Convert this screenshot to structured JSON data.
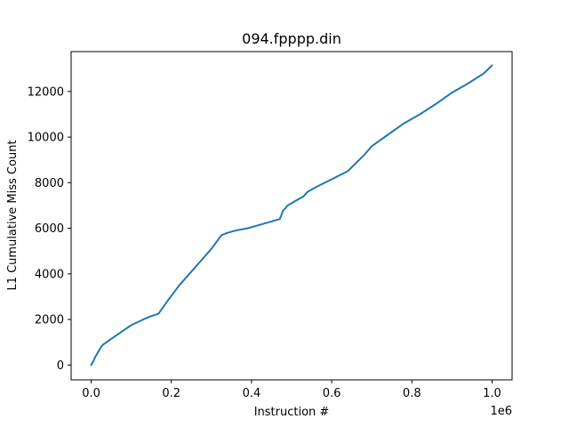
{
  "chart_data": {
    "type": "line",
    "title": "094.fpppp.din",
    "xlabel": "Instruction #",
    "ylabel": "L1 Cumulative Miss Count",
    "x_offset_label": "1e6",
    "xlim": [
      -50000,
      1050000
    ],
    "ylim": [
      -650,
      13750
    ],
    "x_ticks": [
      0,
      200000,
      400000,
      600000,
      800000,
      1000000
    ],
    "x_tick_labels": [
      "0.0",
      "0.2",
      "0.4",
      "0.6",
      "0.8",
      "1.0"
    ],
    "y_ticks": [
      0,
      2000,
      4000,
      6000,
      8000,
      10000,
      12000
    ],
    "y_tick_labels": [
      "0",
      "2000",
      "4000",
      "6000",
      "8000",
      "10000",
      "12000"
    ],
    "grid": false,
    "series": [
      {
        "color": "#1f77b4",
        "x": [
          0,
          5000,
          10000,
          15000,
          20000,
          25000,
          30000,
          50000,
          75000,
          100000,
          130000,
          150000,
          168000,
          190000,
          220000,
          260000,
          300000,
          325000,
          340000,
          360000,
          390000,
          420000,
          450000,
          470000,
          473000,
          478000,
          490000,
          510000,
          530000,
          537000,
          540000,
          560000,
          600000,
          640000,
          660000,
          680000,
          700000,
          740000,
          780000,
          820000,
          860000,
          900000,
          940000,
          980000,
          1000000
        ],
        "y": [
          0,
          150,
          350,
          500,
          650,
          800,
          900,
          1150,
          1450,
          1750,
          2000,
          2150,
          2250,
          2800,
          3500,
          4300,
          5100,
          5700,
          5800,
          5900,
          6000,
          6150,
          6300,
          6400,
          6500,
          6750,
          7000,
          7200,
          7400,
          7550,
          7600,
          7800,
          8150,
          8500,
          8850,
          9200,
          9600,
          10100,
          10600,
          11000,
          11450,
          11950,
          12350,
          12800,
          13150
        ]
      }
    ]
  }
}
